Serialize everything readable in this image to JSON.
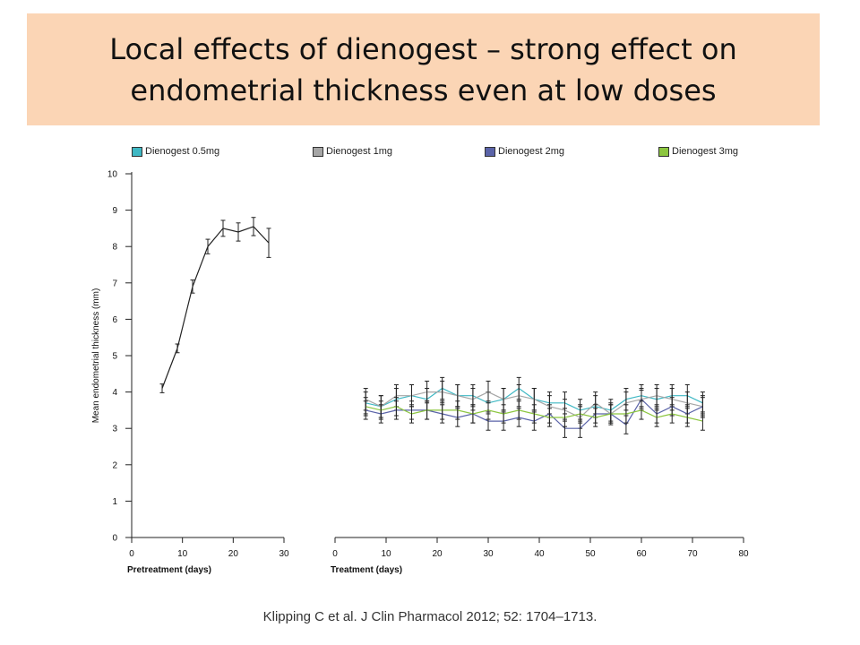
{
  "title": "Local effects of dienogest – strong effect on endometrial thickness even at low doses",
  "citation": "Klipping C et al. J Clin Pharmacol 2012; 52: 1704–1713.",
  "chart_data": {
    "type": "line",
    "ylabel": "Mean endometrial thickness (mm)",
    "ylim": [
      0,
      10
    ],
    "yticks": [
      0,
      1,
      2,
      3,
      4,
      5,
      6,
      7,
      8,
      9,
      10
    ],
    "legend": [
      {
        "name": "Dienogest 0.5mg",
        "color": "#3fb8c4"
      },
      {
        "name": "Dienogest 1mg",
        "color": "#a6a6a6"
      },
      {
        "name": "Dienogest 2mg",
        "color": "#5a63a8"
      },
      {
        "name": "Dienogest 3mg",
        "color": "#8cc63f"
      }
    ],
    "panels": [
      {
        "xlabel": "Pretreatment (days)",
        "xlim": [
          0,
          30
        ],
        "xticks": [
          0,
          10,
          20,
          30
        ],
        "series": [
          {
            "color": "#222222",
            "x": [
              6,
              9,
              12,
              15,
              18,
              21,
              24,
              27
            ],
            "y": [
              4.1,
              5.2,
              6.9,
              8.0,
              8.5,
              8.4,
              8.55,
              8.1
            ],
            "err": [
              0.12,
              0.12,
              0.18,
              0.2,
              0.22,
              0.25,
              0.25,
              0.4
            ]
          }
        ]
      },
      {
        "xlabel": "Treatment (days)",
        "xlim": [
          0,
          80
        ],
        "xticks": [
          0,
          10,
          20,
          30,
          40,
          50,
          60,
          70,
          80
        ],
        "series": [
          {
            "name": "Dienogest 0.5mg",
            "color": "#3fb8c4",
            "x": [
              6,
              9,
              12,
              15,
              18,
              21,
              24,
              27,
              30,
              33,
              36,
              39,
              42,
              45,
              48,
              51,
              54,
              57,
              60,
              63,
              66,
              69,
              72
            ],
            "y": [
              3.7,
              3.6,
              3.8,
              3.9,
              3.8,
              4.1,
              3.9,
              3.9,
              3.7,
              3.8,
              4.1,
              3.8,
              3.7,
              3.7,
              3.5,
              3.6,
              3.5,
              3.8,
              3.9,
              3.8,
              3.9,
              3.9,
              3.7
            ],
            "err": [
              0.3,
              0.3,
              0.3,
              0.3,
              0.3,
              0.3,
              0.3,
              0.3,
              0.3,
              0.3,
              0.3,
              0.3,
              0.3,
              0.3,
              0.3,
              0.3,
              0.3,
              0.3,
              0.3,
              0.3,
              0.3,
              0.3,
              0.3
            ]
          },
          {
            "name": "Dienogest 1mg",
            "color": "#a6a6a6",
            "x": [
              6,
              9,
              12,
              15,
              18,
              21,
              24,
              27,
              30,
              33,
              36,
              39,
              42,
              45,
              48,
              51,
              54,
              57,
              60,
              63,
              66,
              69,
              72
            ],
            "y": [
              3.8,
              3.6,
              3.9,
              3.9,
              4.0,
              4.0,
              3.9,
              3.8,
              4.0,
              3.8,
              3.9,
              3.8,
              3.6,
              3.5,
              3.3,
              3.7,
              3.4,
              3.7,
              3.8,
              3.9,
              3.8,
              3.7,
              3.6
            ],
            "err": [
              0.3,
              0.3,
              0.3,
              0.3,
              0.3,
              0.3,
              0.3,
              0.3,
              0.3,
              0.3,
              0.3,
              0.3,
              0.3,
              0.3,
              0.3,
              0.3,
              0.3,
              0.3,
              0.3,
              0.3,
              0.3,
              0.3,
              0.3
            ]
          },
          {
            "name": "Dienogest 2mg",
            "color": "#5a63a8",
            "x": [
              6,
              9,
              12,
              15,
              18,
              21,
              24,
              27,
              30,
              33,
              36,
              39,
              42,
              45,
              48,
              51,
              54,
              57,
              60,
              63,
              66,
              69,
              72
            ],
            "y": [
              3.5,
              3.4,
              3.5,
              3.5,
              3.5,
              3.4,
              3.3,
              3.4,
              3.2,
              3.2,
              3.3,
              3.2,
              3.4,
              3.0,
              3.0,
              3.4,
              3.4,
              3.1,
              3.8,
              3.4,
              3.6,
              3.4,
              3.6
            ],
            "err": [
              0.25,
              0.25,
              0.25,
              0.25,
              0.25,
              0.25,
              0.25,
              0.25,
              0.25,
              0.25,
              0.25,
              0.25,
              0.25,
              0.25,
              0.25,
              0.25,
              0.25,
              0.25,
              0.25,
              0.25,
              0.25,
              0.25,
              0.25
            ]
          },
          {
            "name": "Dienogest 3mg",
            "color": "#8cc63f",
            "x": [
              6,
              9,
              12,
              15,
              18,
              21,
              24,
              27,
              30,
              33,
              36,
              39,
              42,
              45,
              48,
              51,
              54,
              57,
              60,
              63,
              66,
              69,
              72
            ],
            "y": [
              3.6,
              3.5,
              3.6,
              3.4,
              3.5,
              3.5,
              3.5,
              3.4,
              3.5,
              3.4,
              3.5,
              3.4,
              3.3,
              3.3,
              3.4,
              3.3,
              3.4,
              3.4,
              3.5,
              3.3,
              3.4,
              3.3,
              3.2
            ],
            "err": [
              0.25,
              0.25,
              0.25,
              0.25,
              0.25,
              0.25,
              0.25,
              0.25,
              0.25,
              0.25,
              0.25,
              0.25,
              0.25,
              0.25,
              0.25,
              0.25,
              0.25,
              0.25,
              0.25,
              0.25,
              0.25,
              0.25,
              0.25
            ]
          }
        ]
      }
    ]
  }
}
